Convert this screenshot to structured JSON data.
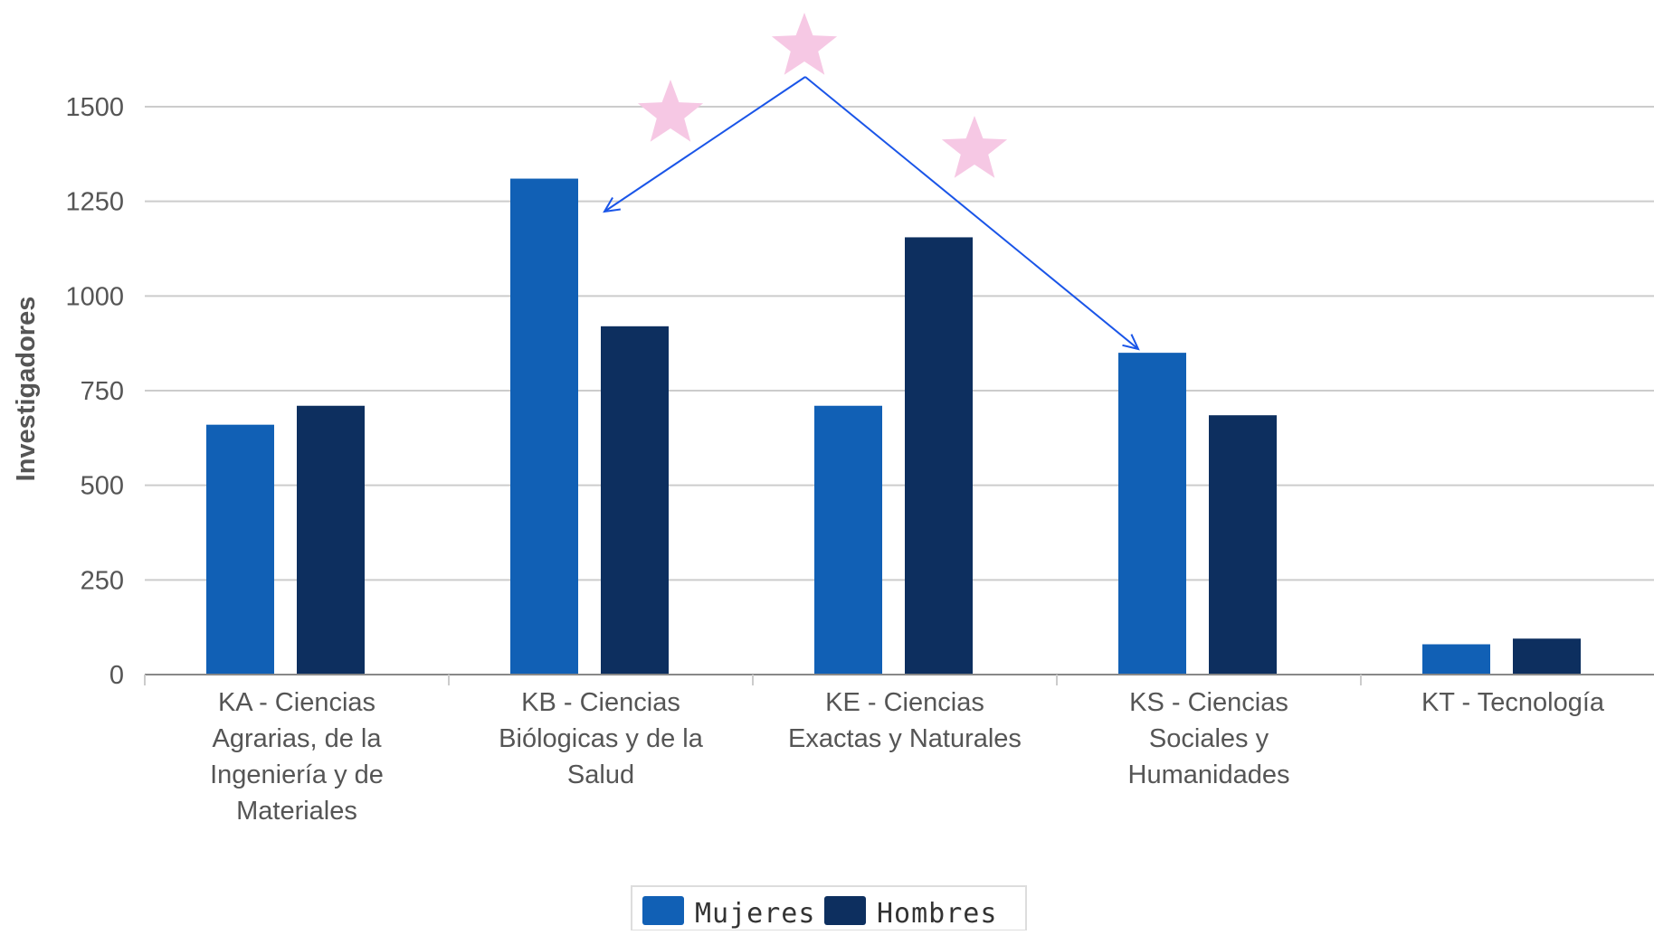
{
  "chart_data": {
    "type": "bar",
    "ylabel": "Investigadores",
    "ylim": [
      0,
      1500
    ],
    "yticks": [
      0,
      250,
      500,
      750,
      1000,
      1250,
      1500
    ],
    "grid": true,
    "legend_position": "bottom-center",
    "categories": [
      [
        "KA - Ciencias",
        "Agrarias, de la",
        "Ingeniería y de",
        "Materiales"
      ],
      [
        "KB - Ciencias",
        "Biólogicas y de la",
        "Salud"
      ],
      [
        "KE - Ciencias",
        "Exactas y Naturales"
      ],
      [
        "KS - Ciencias",
        "Sociales y",
        "Humanidades"
      ],
      [
        "KT - Tecnología"
      ]
    ],
    "series": [
      {
        "name": "Mujeres",
        "color": "#1160b5",
        "values": [
          660,
          1310,
          710,
          850,
          80
        ]
      },
      {
        "name": "Hombres",
        "color": "#0d2f5f",
        "values": [
          710,
          920,
          1155,
          685,
          95
        ]
      }
    ],
    "annotations": {
      "stars": {
        "count": 3,
        "color": "#f6c8e4",
        "icon": "star-icon"
      },
      "arrows": {
        "color": "#1a55e8",
        "from": "top-star",
        "to": [
          "KB - Ciencias",
          "KS - Ciencias"
        ]
      }
    }
  }
}
